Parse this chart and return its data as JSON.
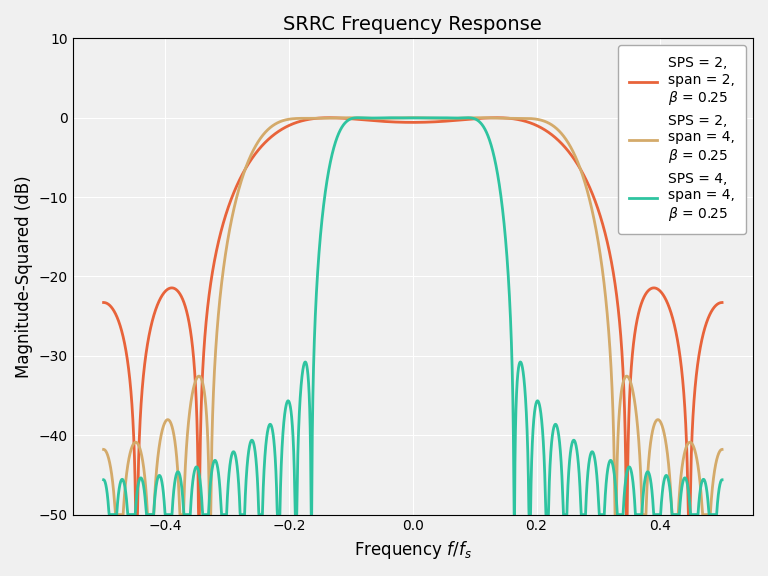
{
  "title": "SRRC Frequency Response",
  "xlabel": "Frequency $f/f_s$",
  "ylabel": "Magnitude-Squared (dB)",
  "xlim": [
    -0.55,
    0.55
  ],
  "ylim": [
    -50,
    10
  ],
  "yticks": [
    10,
    0,
    -10,
    -20,
    -30,
    -40,
    -50
  ],
  "xticks": [
    -0.4,
    -0.2,
    0.0,
    0.2,
    0.4
  ],
  "grid": true,
  "filters": [
    {
      "sps": 2,
      "span": 2,
      "beta": 0.25,
      "color": "#E8633A",
      "label": "SPS = 2,\nspan = 2,\n$\\beta$ = 0.25",
      "linewidth": 2.0
    },
    {
      "sps": 2,
      "span": 4,
      "beta": 0.25,
      "color": "#D4AA6A",
      "label": "SPS = 2,\nspan = 4,\n$\\beta$ = 0.25",
      "linewidth": 2.0
    },
    {
      "sps": 4,
      "span": 4,
      "beta": 0.25,
      "color": "#2EC4A0",
      "label": "SPS = 4,\nspan = 4,\n$\\beta$ = 0.25",
      "linewidth": 2.0
    }
  ],
  "background_color": "#f0f0f0",
  "legend_fontsize": 10,
  "n_fft": 65536,
  "clip_db": -50
}
